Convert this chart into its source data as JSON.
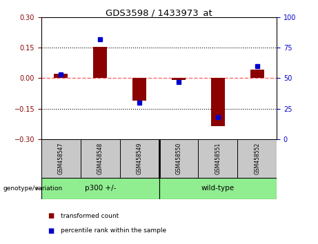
{
  "title": "GDS3598 / 1433973_at",
  "samples": [
    "GSM458547",
    "GSM458548",
    "GSM458549",
    "GSM458550",
    "GSM458551",
    "GSM458552"
  ],
  "red_bars": [
    0.02,
    0.155,
    -0.11,
    -0.01,
    -0.235,
    0.04
  ],
  "blue_dots": [
    53,
    82,
    30,
    47,
    18,
    60
  ],
  "ylim_left": [
    -0.3,
    0.3
  ],
  "ylim_right": [
    0,
    100
  ],
  "yticks_left": [
    -0.3,
    -0.15,
    0,
    0.15,
    0.3
  ],
  "yticks_right": [
    0,
    25,
    50,
    75,
    100
  ],
  "hlines": [
    0.15,
    -0.15
  ],
  "group_split": 3,
  "group_labels": [
    "p300 +/-",
    "wild-type"
  ],
  "group_bg_color": "#C8C8C8",
  "group_green_color": "#90EE90",
  "bar_color": "#8B0000",
  "dot_color": "#0000CD",
  "zero_line_color": "#FF6666",
  "hline_color": "#000000",
  "plot_bg": "#FFFFFF",
  "legend_red_label": "transformed count",
  "legend_blue_label": "percentile rank within the sample",
  "genotype_label": "genotype/variation"
}
